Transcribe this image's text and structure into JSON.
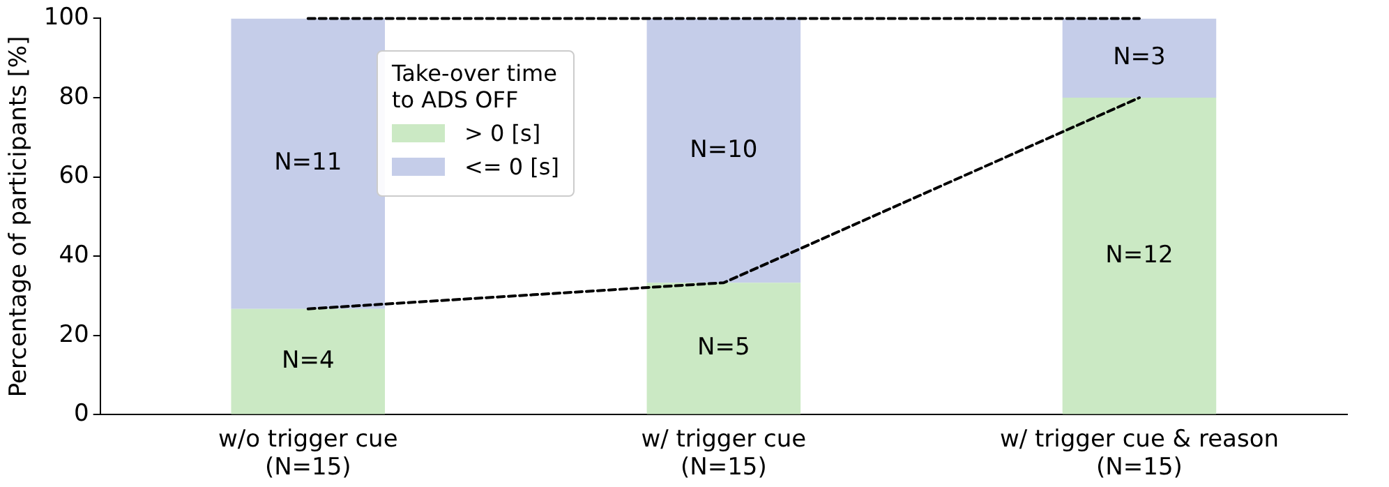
{
  "chart_data": {
    "type": "bar",
    "stacked": true,
    "ylabel": "Percentage of participants [%]",
    "legend_title": "Take-over time\nto ADS OFF",
    "legend": "top left",
    "grid": false,
    "categories": [
      "w/o trigger cue\n(N=15)",
      "w/ trigger cue\n(N=15)",
      "w/ trigger cue & reason\n(N=15)"
    ],
    "ylim": [
      0,
      100
    ],
    "yticks": [
      0,
      20,
      40,
      60,
      80,
      100
    ],
    "series": [
      {
        "name": "> 0 [s]",
        "color": "#cbe9c4",
        "values": [
          26.7,
          33.3,
          80
        ]
      },
      {
        "name": "<= 0 [s]",
        "color": "#c5cde9",
        "values": [
          73.3,
          66.7,
          20
        ]
      },
      {
        "type": "line",
        "color": "#000000",
        "line_style": "dashed",
        "marker": "none",
        "values": [
          26.7,
          33.3,
          80
        ]
      },
      {
        "type": "line",
        "color": "#000000",
        "line_style": "dashed",
        "marker": "none",
        "values": [
          100,
          100,
          100
        ]
      }
    ],
    "annotations": [
      "N=4",
      "N=11",
      "N=5",
      "N=10",
      "N=12",
      "N=3"
    ]
  }
}
